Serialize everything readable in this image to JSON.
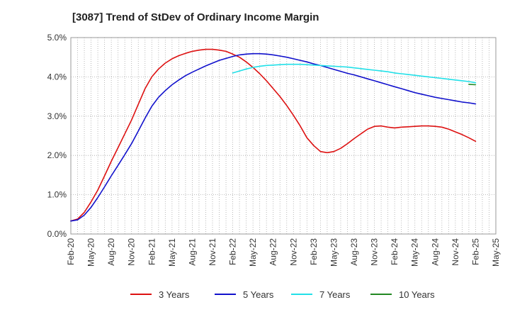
{
  "chart_data": {
    "type": "line",
    "title": "[3087]  Trend of StDev of Ordinary Income Margin",
    "xlabel": "",
    "ylabel": "",
    "x_ticks": [
      "Feb-20",
      "May-20",
      "Aug-20",
      "Nov-20",
      "Feb-21",
      "May-21",
      "Aug-21",
      "Nov-21",
      "Feb-22",
      "May-22",
      "Aug-22",
      "Nov-22",
      "Feb-23",
      "May-23",
      "Aug-23",
      "Nov-23",
      "Feb-24",
      "May-24",
      "Aug-24",
      "Nov-24",
      "Feb-25",
      "May-25"
    ],
    "y_ticks": [
      "0.0%",
      "1.0%",
      "2.0%",
      "3.0%",
      "4.0%",
      "5.0%"
    ],
    "ylim": [
      0,
      5
    ],
    "grid": "dotted",
    "legend_position": "bottom",
    "series": [
      {
        "name": "3 Years",
        "color": "#dd1111",
        "x": [
          "Feb-20",
          "Mar-20",
          "Apr-20",
          "May-20",
          "Jun-20",
          "Jul-20",
          "Aug-20",
          "Sep-20",
          "Oct-20",
          "Nov-20",
          "Dec-20",
          "Jan-21",
          "Feb-21",
          "Mar-21",
          "Apr-21",
          "May-21",
          "Jun-21",
          "Jul-21",
          "Aug-21",
          "Sep-21",
          "Oct-21",
          "Nov-21",
          "Dec-21",
          "Jan-22",
          "Feb-22",
          "Mar-22",
          "Apr-22",
          "May-22",
          "Jun-22",
          "Jul-22",
          "Aug-22",
          "Sep-22",
          "Oct-22",
          "Nov-22",
          "Dec-22",
          "Jan-23",
          "Feb-23",
          "Mar-23",
          "Apr-23",
          "May-23",
          "Jun-23",
          "Jul-23",
          "Aug-23",
          "Sep-23",
          "Oct-23",
          "Nov-23",
          "Dec-23",
          "Jan-24",
          "Feb-24",
          "Mar-24",
          "Apr-24",
          "May-24",
          "Jun-24",
          "Jul-24",
          "Aug-24",
          "Sep-24",
          "Oct-24",
          "Nov-24",
          "Dec-24",
          "Jan-25",
          "Feb-25"
        ],
        "values": [
          0.33,
          0.38,
          0.55,
          0.82,
          1.12,
          1.48,
          1.85,
          2.2,
          2.55,
          2.9,
          3.3,
          3.7,
          4.0,
          4.2,
          4.35,
          4.46,
          4.54,
          4.6,
          4.65,
          4.68,
          4.7,
          4.7,
          4.68,
          4.65,
          4.58,
          4.5,
          4.38,
          4.24,
          4.08,
          3.9,
          3.7,
          3.5,
          3.27,
          3.02,
          2.75,
          2.45,
          2.25,
          2.1,
          2.07,
          2.1,
          2.18,
          2.3,
          2.43,
          2.55,
          2.67,
          2.74,
          2.75,
          2.72,
          2.7,
          2.72,
          2.73,
          2.74,
          2.75,
          2.75,
          2.74,
          2.72,
          2.67,
          2.6,
          2.53,
          2.45,
          2.36
        ]
      },
      {
        "name": "5 Years",
        "color": "#1111cc",
        "x": [
          "Feb-20",
          "Mar-20",
          "Apr-20",
          "May-20",
          "Jun-20",
          "Jul-20",
          "Aug-20",
          "Sep-20",
          "Oct-20",
          "Nov-20",
          "Dec-20",
          "Jan-21",
          "Feb-21",
          "Mar-21",
          "Apr-21",
          "May-21",
          "Jun-21",
          "Jul-21",
          "Aug-21",
          "Sep-21",
          "Oct-21",
          "Nov-21",
          "Dec-21",
          "Jan-22",
          "Feb-22",
          "Mar-22",
          "Apr-22",
          "May-22",
          "Jun-22",
          "Jul-22",
          "Aug-22",
          "Sep-22",
          "Oct-22",
          "Nov-22",
          "Dec-22",
          "Jan-23",
          "Feb-23",
          "Mar-23",
          "Apr-23",
          "May-23",
          "Jun-23",
          "Jul-23",
          "Aug-23",
          "Sep-23",
          "Oct-23",
          "Nov-23",
          "Dec-23",
          "Jan-24",
          "Feb-24",
          "Mar-24",
          "Apr-24",
          "May-24",
          "Jun-24",
          "Jul-24",
          "Aug-24",
          "Sep-24",
          "Oct-24",
          "Nov-24",
          "Dec-24",
          "Jan-25",
          "Feb-25"
        ],
        "values": [
          0.33,
          0.36,
          0.48,
          0.68,
          0.93,
          1.2,
          1.48,
          1.75,
          2.02,
          2.3,
          2.62,
          2.95,
          3.25,
          3.48,
          3.65,
          3.8,
          3.92,
          4.03,
          4.12,
          4.2,
          4.28,
          4.35,
          4.42,
          4.47,
          4.52,
          4.56,
          4.58,
          4.59,
          4.59,
          4.58,
          4.56,
          4.53,
          4.5,
          4.46,
          4.42,
          4.38,
          4.33,
          4.29,
          4.24,
          4.19,
          4.14,
          4.09,
          4.05,
          4.0,
          3.95,
          3.9,
          3.85,
          3.8,
          3.75,
          3.7,
          3.65,
          3.6,
          3.56,
          3.52,
          3.48,
          3.45,
          3.42,
          3.39,
          3.36,
          3.34,
          3.31
        ]
      },
      {
        "name": "7 Years",
        "color": "#22e0e8",
        "x": [
          "Feb-22",
          "Mar-22",
          "Apr-22",
          "May-22",
          "Jun-22",
          "Jul-22",
          "Aug-22",
          "Sep-22",
          "Oct-22",
          "Nov-22",
          "Dec-22",
          "Jan-23",
          "Feb-23",
          "Mar-23",
          "Apr-23",
          "May-23",
          "Jun-23",
          "Jul-23",
          "Aug-23",
          "Sep-23",
          "Oct-23",
          "Nov-23",
          "Dec-23",
          "Jan-24",
          "Feb-24",
          "Mar-24",
          "Apr-24",
          "May-24",
          "Jun-24",
          "Jul-24",
          "Aug-24",
          "Sep-24",
          "Oct-24",
          "Nov-24",
          "Dec-24",
          "Jan-25",
          "Feb-25"
        ],
        "values": [
          4.1,
          4.15,
          4.2,
          4.24,
          4.27,
          4.29,
          4.3,
          4.31,
          4.32,
          4.32,
          4.32,
          4.31,
          4.3,
          4.29,
          4.28,
          4.27,
          4.26,
          4.25,
          4.23,
          4.21,
          4.19,
          4.17,
          4.15,
          4.13,
          4.1,
          4.08,
          4.06,
          4.04,
          4.02,
          4.0,
          3.98,
          3.96,
          3.94,
          3.92,
          3.9,
          3.88,
          3.85
        ]
      },
      {
        "name": "10 Years",
        "color": "#228822",
        "x": [
          "Jan-25",
          "Feb-25"
        ],
        "values": [
          3.81,
          3.8
        ]
      }
    ]
  }
}
